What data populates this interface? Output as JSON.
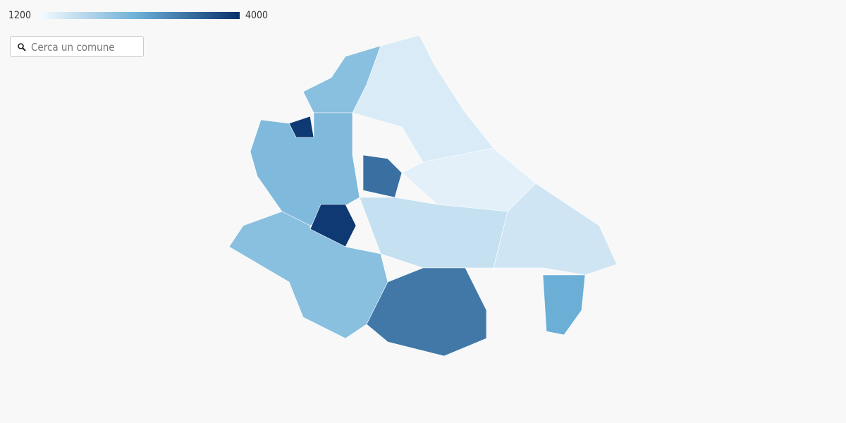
{
  "legend": {
    "min": 1200,
    "max": 4000,
    "colors": [
      "#f7fbff",
      "#6baed6",
      "#08306b"
    ]
  },
  "search": {
    "placeholder": "Cerca un comune"
  },
  "map": {
    "values": [
      2300,
      1500,
      3900,
      2400,
      3900,
      3300,
      1400,
      1700,
      2300,
      3200,
      1600,
      2600
    ]
  }
}
